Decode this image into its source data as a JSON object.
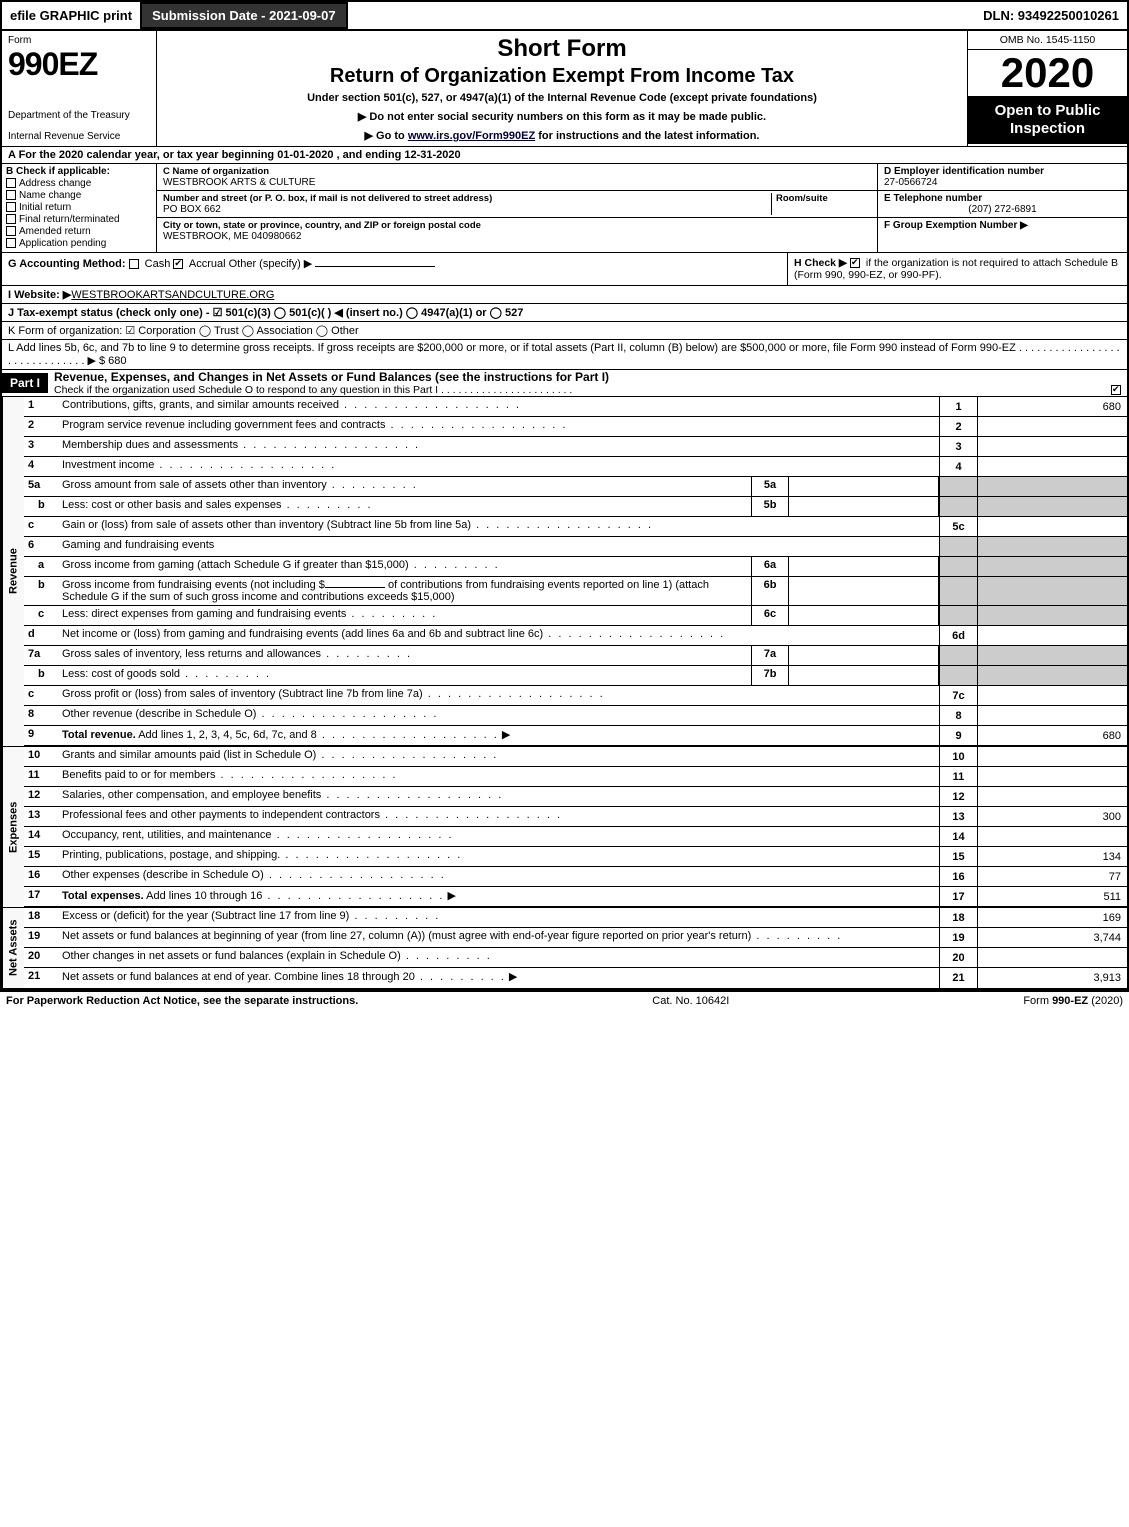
{
  "top": {
    "efile": "efile GRAPHIC print",
    "submission_btn": "Submission Date - 2021-09-07",
    "dln": "DLN: 93492250010261"
  },
  "header": {
    "form_word": "Form",
    "form_number": "990EZ",
    "dept1": "Department of the Treasury",
    "dept2": "Internal Revenue Service",
    "short_form": "Short Form",
    "return_title": "Return of Organization Exempt From Income Tax",
    "under_section": "Under section 501(c), 527, or 4947(a)(1) of the Internal Revenue Code (except private foundations)",
    "arrow1": "▶ Do not enter social security numbers on this form as it may be made public.",
    "arrow2_pre": "▶ Go to ",
    "arrow2_link": "www.irs.gov/Form990EZ",
    "arrow2_post": " for instructions and the latest information.",
    "omb": "OMB No. 1545-1150",
    "tax_year": "2020",
    "open_public": "Open to Public Inspection"
  },
  "line_a": "A  For the 2020 calendar year, or tax year beginning 01-01-2020 , and ending 12-31-2020",
  "section_b": {
    "title": "B  Check if applicable:",
    "items": [
      "Address change",
      "Name change",
      "Initial return",
      "Final return/terminated",
      "Amended return",
      "Application pending"
    ]
  },
  "section_c": {
    "name_label": "C Name of organization",
    "name": "WESTBROOK ARTS & CULTURE",
    "addr_label": "Number and street (or P. O. box, if mail is not delivered to street address)",
    "room_label": "Room/suite",
    "addr": "PO BOX 662",
    "city_label": "City or town, state or province, country, and ZIP or foreign postal code",
    "city": "WESTBROOK, ME  040980662"
  },
  "section_d": {
    "d_label": "D Employer identification number",
    "ein": "27-0566724",
    "e_label": "E Telephone number",
    "phone": "(207) 272-6891",
    "f_label": "F Group Exemption Number  ▶"
  },
  "line_g": {
    "label": "G Accounting Method:",
    "cash": "Cash",
    "accrual": "Accrual",
    "other": "Other (specify) ▶"
  },
  "line_h": {
    "label": "H  Check ▶",
    "text": " if the organization is not required to attach Schedule B (Form 990, 990-EZ, or 990-PF)."
  },
  "line_i": {
    "label": "I Website: ▶",
    "value": "WESTBROOKARTSANDCULTURE.ORG"
  },
  "line_j": "J Tax-exempt status (check only one) - ☑ 501(c)(3)  ◯ 501(c)(  ) ◀ (insert no.)  ◯ 4947(a)(1) or  ◯ 527",
  "line_k": "K Form of organization:  ☑ Corporation  ◯ Trust  ◯ Association  ◯ Other",
  "line_l": {
    "text": "L Add lines 5b, 6c, and 7b to line 9 to determine gross receipts. If gross receipts are $200,000 or more, or if total assets (Part II, column (B) below) are $500,000 or more, file Form 990 instead of Form 990-EZ .  .  .  .  .  .  .  .  .  .  .  .  .  .  .  .  .  .  .  .  .  .  .  .  .  .  .  .  .  .  ▶ $ 680"
  },
  "part1": {
    "label": "Part I",
    "title": "Revenue, Expenses, and Changes in Net Assets or Fund Balances (see the instructions for Part I)",
    "check_text": "Check if the organization used Schedule O to respond to any question in this Part I .  .  .  .  .  .  .  .  .  .  .  .  .  .  .  .  .  .  .  .  .  .  ."
  },
  "side_labels": {
    "revenue": "Revenue",
    "expenses": "Expenses",
    "netassets": "Net Assets"
  },
  "revenue_lines": [
    {
      "n": "1",
      "desc": "Contributions, gifts, grants, and similar amounts received",
      "rnum": "1",
      "amt": "680"
    },
    {
      "n": "2",
      "desc": "Program service revenue including government fees and contracts",
      "rnum": "2",
      "amt": ""
    },
    {
      "n": "3",
      "desc": "Membership dues and assessments",
      "rnum": "3",
      "amt": ""
    },
    {
      "n": "4",
      "desc": "Investment income",
      "rnum": "4",
      "amt": ""
    }
  ],
  "line5a": {
    "n": "5a",
    "desc": "Gross amount from sale of assets other than inventory",
    "sub": "5a"
  },
  "line5b": {
    "n": "b",
    "desc": "Less: cost or other basis and sales expenses",
    "sub": "5b"
  },
  "line5c": {
    "n": "c",
    "desc": "Gain or (loss) from sale of assets other than inventory (Subtract line 5b from line 5a)",
    "rnum": "5c"
  },
  "line6": {
    "n": "6",
    "desc": "Gaming and fundraising events"
  },
  "line6a": {
    "n": "a",
    "desc": "Gross income from gaming (attach Schedule G if greater than $15,000)",
    "sub": "6a"
  },
  "line6b": {
    "n": "b",
    "desc_pre": "Gross income from fundraising events (not including $",
    "desc_mid": "of contributions from fundraising events reported on line 1) (attach Schedule G if the sum of such gross income and contributions exceeds $15,000)",
    "sub": "6b"
  },
  "line6c": {
    "n": "c",
    "desc": "Less: direct expenses from gaming and fundraising events",
    "sub": "6c"
  },
  "line6d": {
    "n": "d",
    "desc": "Net income or (loss) from gaming and fundraising events (add lines 6a and 6b and subtract line 6c)",
    "rnum": "6d"
  },
  "line7a": {
    "n": "7a",
    "desc": "Gross sales of inventory, less returns and allowances",
    "sub": "7a"
  },
  "line7b": {
    "n": "b",
    "desc": "Less: cost of goods sold",
    "sub": "7b"
  },
  "line7c": {
    "n": "c",
    "desc": "Gross profit or (loss) from sales of inventory (Subtract line 7b from line 7a)",
    "rnum": "7c"
  },
  "line8": {
    "n": "8",
    "desc": "Other revenue (describe in Schedule O)",
    "rnum": "8"
  },
  "line9": {
    "n": "9",
    "desc": "Total revenue. Add lines 1, 2, 3, 4, 5c, 6d, 7c, and 8",
    "rnum": "9",
    "amt": "680"
  },
  "expense_lines": [
    {
      "n": "10",
      "desc": "Grants and similar amounts paid (list in Schedule O)",
      "rnum": "10",
      "amt": ""
    },
    {
      "n": "11",
      "desc": "Benefits paid to or for members",
      "rnum": "11",
      "amt": ""
    },
    {
      "n": "12",
      "desc": "Salaries, other compensation, and employee benefits",
      "rnum": "12",
      "amt": ""
    },
    {
      "n": "13",
      "desc": "Professional fees and other payments to independent contractors",
      "rnum": "13",
      "amt": "300"
    },
    {
      "n": "14",
      "desc": "Occupancy, rent, utilities, and maintenance",
      "rnum": "14",
      "amt": ""
    },
    {
      "n": "15",
      "desc": "Printing, publications, postage, and shipping.",
      "rnum": "15",
      "amt": "134"
    },
    {
      "n": "16",
      "desc": "Other expenses (describe in Schedule O)",
      "rnum": "16",
      "amt": "77"
    },
    {
      "n": "17",
      "desc": "Total expenses. Add lines 10 through 16",
      "rnum": "17",
      "amt": "511",
      "bold": true,
      "arrow": true
    }
  ],
  "netassets_lines": [
    {
      "n": "18",
      "desc": "Excess or (deficit) for the year (Subtract line 17 from line 9)",
      "rnum": "18",
      "amt": "169"
    },
    {
      "n": "19",
      "desc": "Net assets or fund balances at beginning of year (from line 27, column (A)) (must agree with end-of-year figure reported on prior year's return)",
      "rnum": "19",
      "amt": "3,744"
    },
    {
      "n": "20",
      "desc": "Other changes in net assets or fund balances (explain in Schedule O)",
      "rnum": "20",
      "amt": ""
    },
    {
      "n": "21",
      "desc": "Net assets or fund balances at end of year. Combine lines 18 through 20",
      "rnum": "21",
      "amt": "3,913",
      "arrow": true
    }
  ],
  "footer": {
    "left": "For Paperwork Reduction Act Notice, see the separate instructions.",
    "mid": "Cat. No. 10642I",
    "right": "Form 990-EZ (2020)"
  },
  "colors": {
    "black": "#000000",
    "white": "#ffffff",
    "shaded": "#cccccc"
  }
}
